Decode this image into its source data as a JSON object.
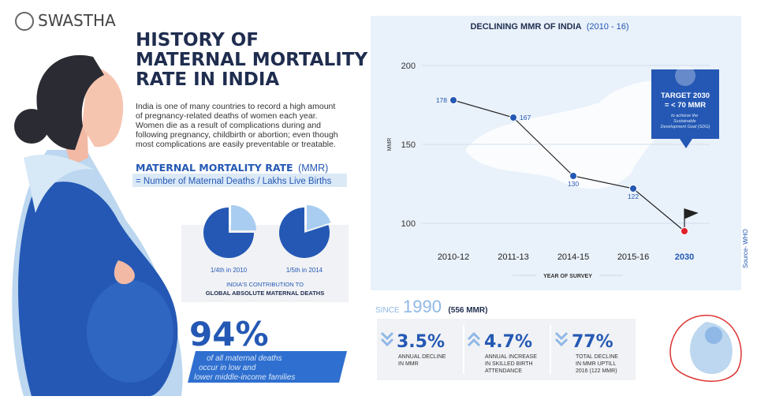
{
  "logo": "SWASTHA",
  "title": [
    "HISTORY OF",
    "MATERNAL MORTALITY",
    "RATE IN INDIA"
  ],
  "intro": [
    "India is one of many countries to record a high amount",
    "of pregnancy-related deaths of women each year.",
    "Women die as a result of complications during and",
    "following pregnancy, childbirth or abortion; even though",
    "most complications are easily preventable or treatable."
  ],
  "definition": {
    "term": "MATERNAL MORTALITY RATE",
    "abbr": "(MMR)",
    "formula": "= Number of Maternal Deaths / Lakhs Live Births"
  },
  "contribution": {
    "pies": [
      {
        "label": "1/4th in 2010",
        "share": 0.25
      },
      {
        "label": "1/5th in 2014",
        "share": 0.2
      }
    ],
    "caption": [
      "INDIA'S CONTRIBUTION TO",
      "GLOBAL ABSOLUTE MATERNAL DEATHS"
    ]
  },
  "share_stat": {
    "value": "94%",
    "text": [
      "of all maternal deaths",
      "occur in  low and",
      "lower middle-income families"
    ]
  },
  "chart_data": {
    "type": "line",
    "title": "DECLINING MMR OF INDIA",
    "subtitle": "(2010 - 16)",
    "categories": [
      "2010-12",
      "2011-13",
      "2014-15",
      "2015-16",
      "2030"
    ],
    "values": [
      178,
      167,
      130,
      122,
      95
    ],
    "value_labels": [
      "178",
      "167",
      "130",
      "122",
      null
    ],
    "color": "#1f3b73",
    "ylabel": "MMR",
    "xlabel": "YEAR OF SURVEY",
    "ylim": [
      92,
      210
    ],
    "yticks": [
      100,
      150,
      200
    ],
    "grid": true
  },
  "target": {
    "title": "TARGET 2030",
    "value": "= < 70 MMR",
    "note": [
      "to achieve the",
      "Sustainable",
      "Development Goal (SDG)"
    ]
  },
  "source": "Source- WHO",
  "since": {
    "prefix": "SINCE",
    "year": "1990",
    "detail": "(556 MMR)"
  },
  "stats": [
    {
      "value": "3.5%",
      "lines": [
        "ANNUAL DECLINE",
        "IN MMR"
      ]
    },
    {
      "value": "4.7%",
      "lines": [
        "ANNUAL INCREASE",
        "IN SKILLED BIRTH",
        "ATTENDANCE"
      ]
    },
    {
      "value": "77%",
      "lines": [
        "TOTAL DECLINE",
        "IN MMR UPTILL",
        "2016 (122 MMR)"
      ]
    }
  ]
}
